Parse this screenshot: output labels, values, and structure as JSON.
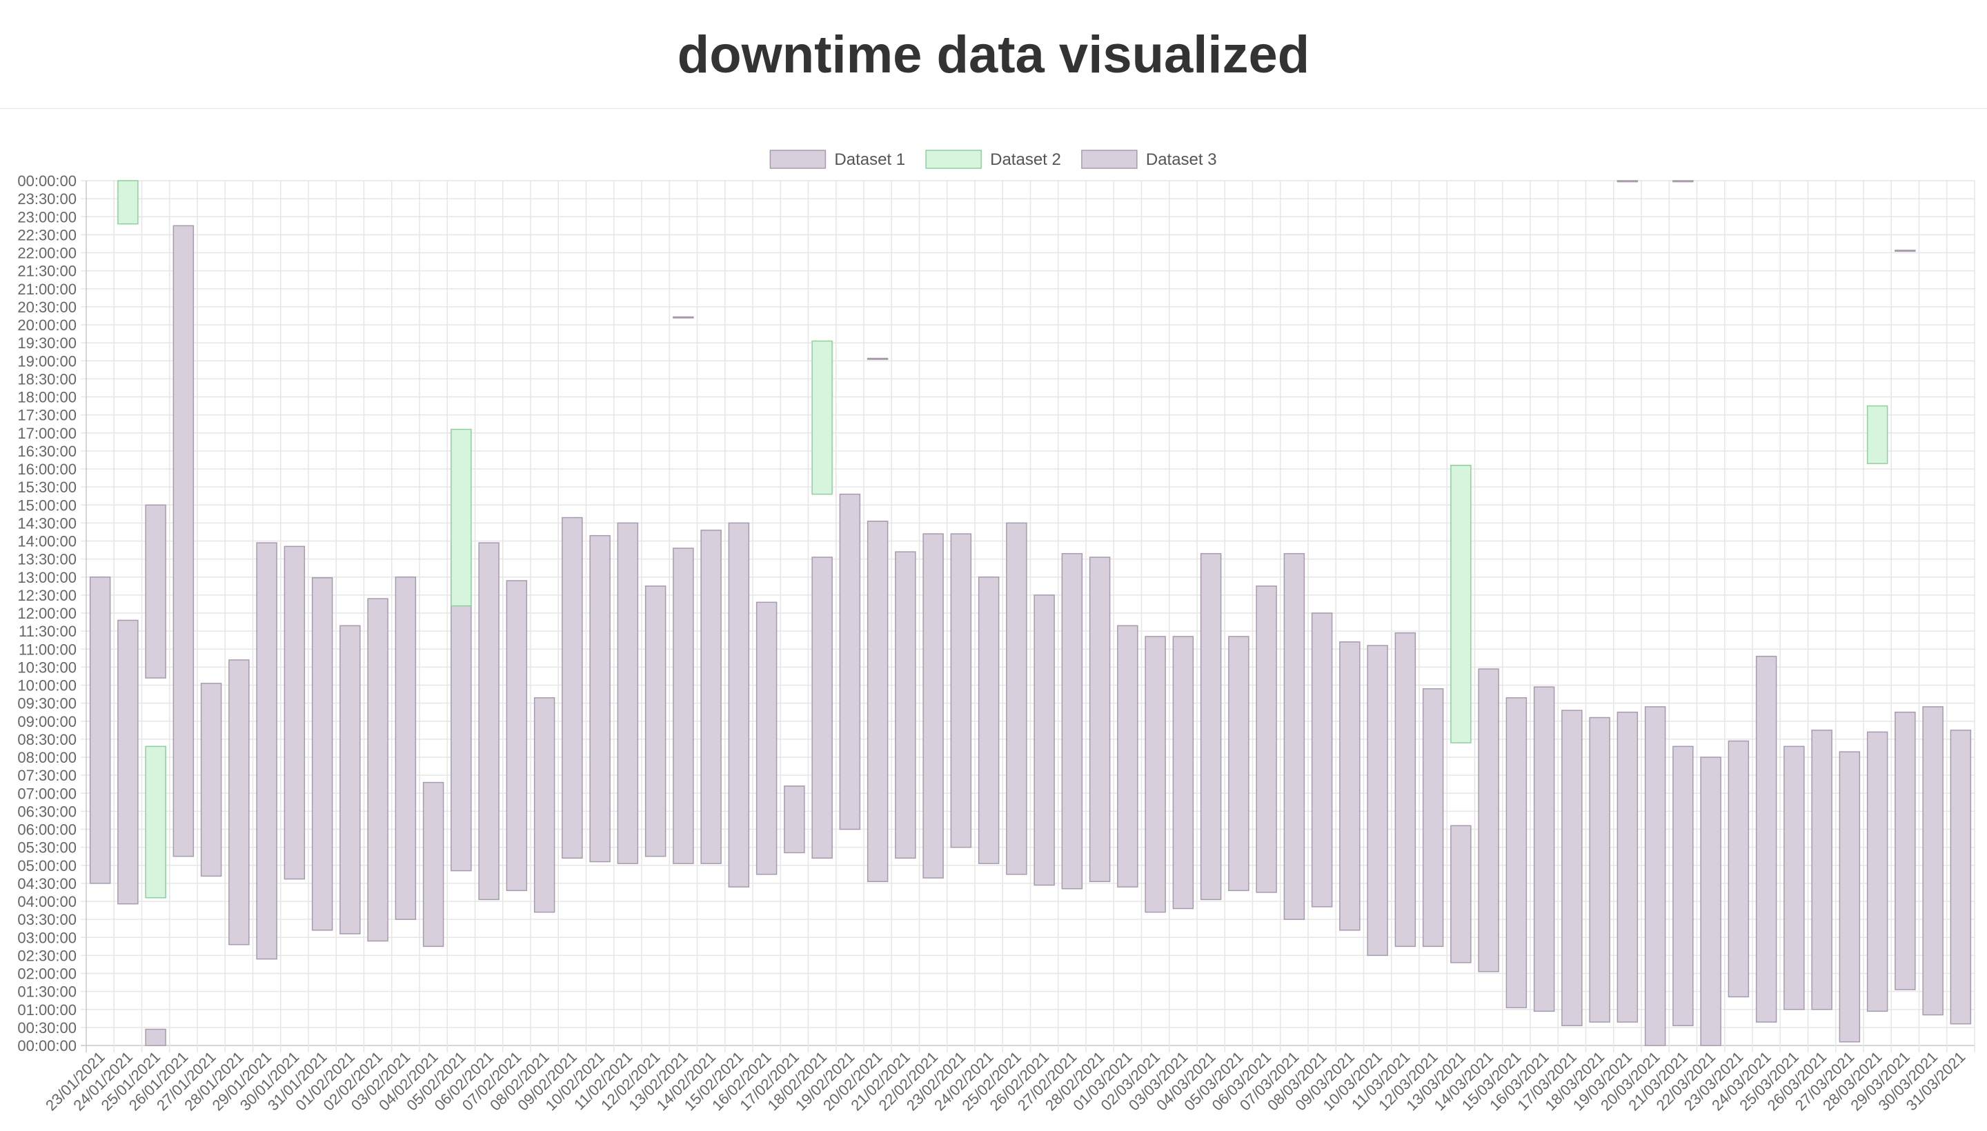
{
  "page": {
    "title": "downtime data visualized"
  },
  "chart_data": {
    "type": "bar",
    "floating": true,
    "stacked": true,
    "categories": [
      "23/01/2021",
      "24/01/2021",
      "25/01/2021",
      "26/01/2021",
      "27/01/2021",
      "28/01/2021",
      "29/01/2021",
      "30/01/2021",
      "31/01/2021",
      "01/02/2021",
      "02/02/2021",
      "03/02/2021",
      "04/02/2021",
      "05/02/2021",
      "06/02/2021",
      "07/02/2021",
      "08/02/2021",
      "09/02/2021",
      "10/02/2021",
      "11/02/2021",
      "12/02/2021",
      "13/02/2021",
      "14/02/2021",
      "15/02/2021",
      "16/02/2021",
      "17/02/2021",
      "18/02/2021",
      "19/02/2021",
      "20/02/2021",
      "21/02/2021",
      "22/02/2021",
      "23/02/2021",
      "24/02/2021",
      "25/02/2021",
      "26/02/2021",
      "27/02/2021",
      "28/02/2021",
      "01/03/2021",
      "02/03/2021",
      "03/03/2021",
      "04/03/2021",
      "05/03/2021",
      "06/03/2021",
      "07/03/2021",
      "08/03/2021",
      "09/03/2021",
      "10/03/2021",
      "11/03/2021",
      "12/03/2021",
      "13/03/2021",
      "14/03/2021",
      "15/03/2021",
      "16/03/2021",
      "17/03/2021",
      "18/03/2021",
      "19/03/2021",
      "20/03/2021",
      "21/03/2021",
      "22/03/2021",
      "23/03/2021",
      "24/03/2021",
      "25/03/2021",
      "26/03/2021",
      "27/03/2021",
      "28/03/2021",
      "29/03/2021",
      "30/03/2021",
      "31/03/2021"
    ],
    "y_unit": "hours of day",
    "ylim": [
      0,
      24
    ],
    "y_ticks": [
      "00:00:00",
      "00:30:00",
      "01:00:00",
      "01:30:00",
      "02:00:00",
      "02:30:00",
      "03:00:00",
      "03:30:00",
      "04:00:00",
      "04:30:00",
      "05:00:00",
      "05:30:00",
      "06:00:00",
      "06:30:00",
      "07:00:00",
      "07:30:00",
      "08:00:00",
      "08:30:00",
      "09:00:00",
      "09:30:00",
      "10:00:00",
      "10:30:00",
      "11:00:00",
      "11:30:00",
      "12:00:00",
      "12:30:00",
      "13:00:00",
      "13:30:00",
      "14:00:00",
      "14:30:00",
      "15:00:00",
      "15:30:00",
      "16:00:00",
      "16:30:00",
      "17:00:00",
      "17:30:00",
      "18:00:00",
      "18:30:00",
      "19:00:00",
      "19:30:00",
      "20:00:00",
      "20:30:00",
      "21:00:00",
      "21:30:00",
      "22:00:00",
      "22:30:00",
      "23:00:00",
      "23:30:00",
      "00:00:00"
    ],
    "legend": {
      "position": "top"
    },
    "grid": true,
    "series": [
      {
        "name": "Dataset 1",
        "color": "#d8cfdc",
        "border": "#a89aae",
        "values": [
          [
            4.5,
            13.0
          ],
          [
            3.93,
            11.8
          ],
          [
            10.2,
            15.0
          ],
          [
            5.25,
            22.75
          ],
          [
            4.7,
            10.05
          ],
          [
            2.8,
            10.7
          ],
          [
            2.4,
            13.95
          ],
          [
            4.62,
            13.85
          ],
          [
            3.2,
            12.98
          ],
          [
            3.1,
            11.65
          ],
          [
            2.9,
            12.4
          ],
          [
            3.5,
            13.0
          ],
          [
            2.75,
            7.3
          ],
          [
            4.85,
            13.95
          ],
          [
            4.05,
            13.95
          ],
          [
            4.3,
            12.9
          ],
          [
            3.7,
            9.65
          ],
          [
            5.2,
            14.65
          ],
          [
            5.1,
            14.15
          ],
          [
            5.05,
            14.5
          ],
          [
            5.25,
            12.75
          ],
          [
            5.05,
            13.8
          ],
          [
            5.05,
            14.3
          ],
          [
            4.4,
            14.5
          ],
          [
            4.75,
            12.3
          ],
          [
            5.35,
            7.2
          ],
          [
            5.2,
            13.55
          ],
          [
            6.0,
            15.3
          ],
          [
            4.55,
            14.55
          ],
          [
            5.2,
            13.7
          ],
          [
            4.65,
            14.2
          ],
          [
            5.5,
            14.2
          ],
          [
            5.05,
            13.0
          ],
          [
            4.75,
            14.5
          ],
          [
            4.45,
            12.5
          ],
          [
            4.35,
            13.65
          ],
          [
            4.55,
            13.55
          ],
          [
            4.4,
            11.65
          ],
          [
            3.7,
            11.35
          ],
          [
            3.8,
            11.35
          ],
          [
            4.05,
            13.65
          ],
          [
            4.3,
            11.35
          ],
          [
            4.25,
            12.75
          ],
          [
            3.5,
            13.65
          ],
          [
            3.85,
            12.0
          ],
          [
            3.2,
            11.2
          ],
          [
            2.5,
            11.1
          ],
          [
            2.75,
            11.45
          ],
          [
            2.75,
            9.9
          ],
          [
            2.3,
            6.1
          ],
          [
            2.05,
            10.45
          ],
          [
            1.05,
            9.65
          ],
          [
            0.95,
            9.95
          ],
          [
            0.55,
            9.3
          ],
          [
            0.65,
            9.1
          ],
          [
            0.65,
            9.25
          ],
          [
            0.0,
            9.4
          ],
          [
            0.55,
            8.3
          ],
          [
            0.0,
            8.0
          ],
          [
            1.35,
            8.45
          ],
          [
            0.65,
            10.8
          ],
          [
            1.0,
            8.3
          ],
          [
            1.0,
            8.75
          ],
          [
            0.1,
            8.15
          ],
          [
            0.95,
            8.7
          ],
          [
            1.55,
            9.25
          ],
          [
            0.85,
            9.4
          ],
          [
            0.6,
            8.75
          ]
        ]
      },
      {
        "name": "Dataset 2",
        "color": "#d7f5dd",
        "border": "#8fcf9c",
        "values": [
          null,
          [
            22.8,
            24.0
          ],
          [
            4.1,
            8.3
          ],
          null,
          null,
          null,
          null,
          null,
          null,
          null,
          null,
          null,
          null,
          [
            12.2,
            17.1
          ],
          null,
          null,
          null,
          null,
          null,
          null,
          null,
          null,
          null,
          null,
          null,
          null,
          [
            15.3,
            19.55
          ],
          null,
          null,
          null,
          null,
          null,
          null,
          null,
          null,
          null,
          null,
          null,
          null,
          null,
          null,
          null,
          null,
          null,
          null,
          null,
          null,
          null,
          null,
          [
            8.4,
            16.1
          ],
          null,
          null,
          null,
          null,
          null,
          null,
          null,
          null,
          null,
          null,
          null,
          null,
          null,
          null,
          [
            16.15,
            17.75
          ],
          null,
          null,
          null
        ]
      },
      {
        "name": "Dataset 3",
        "color": "#d8cfdc",
        "border": "#a89aae",
        "values": [
          null,
          null,
          [
            0.0,
            0.45
          ],
          null,
          null,
          null,
          null,
          null,
          null,
          null,
          null,
          null,
          null,
          null,
          null,
          null,
          null,
          null,
          null,
          null,
          null,
          [
            20.2,
            20.22
          ],
          null,
          null,
          null,
          null,
          null,
          null,
          [
            19.05,
            19.07
          ],
          null,
          null,
          null,
          null,
          null,
          null,
          null,
          null,
          null,
          null,
          null,
          null,
          null,
          null,
          null,
          null,
          null,
          null,
          null,
          null,
          null,
          null,
          null,
          null,
          null,
          null,
          [
            23.97,
            24.0
          ],
          null,
          [
            23.97,
            24.0
          ],
          null,
          null,
          null,
          null,
          null,
          null,
          null,
          [
            22.05,
            22.07
          ],
          null,
          null
        ]
      }
    ]
  }
}
